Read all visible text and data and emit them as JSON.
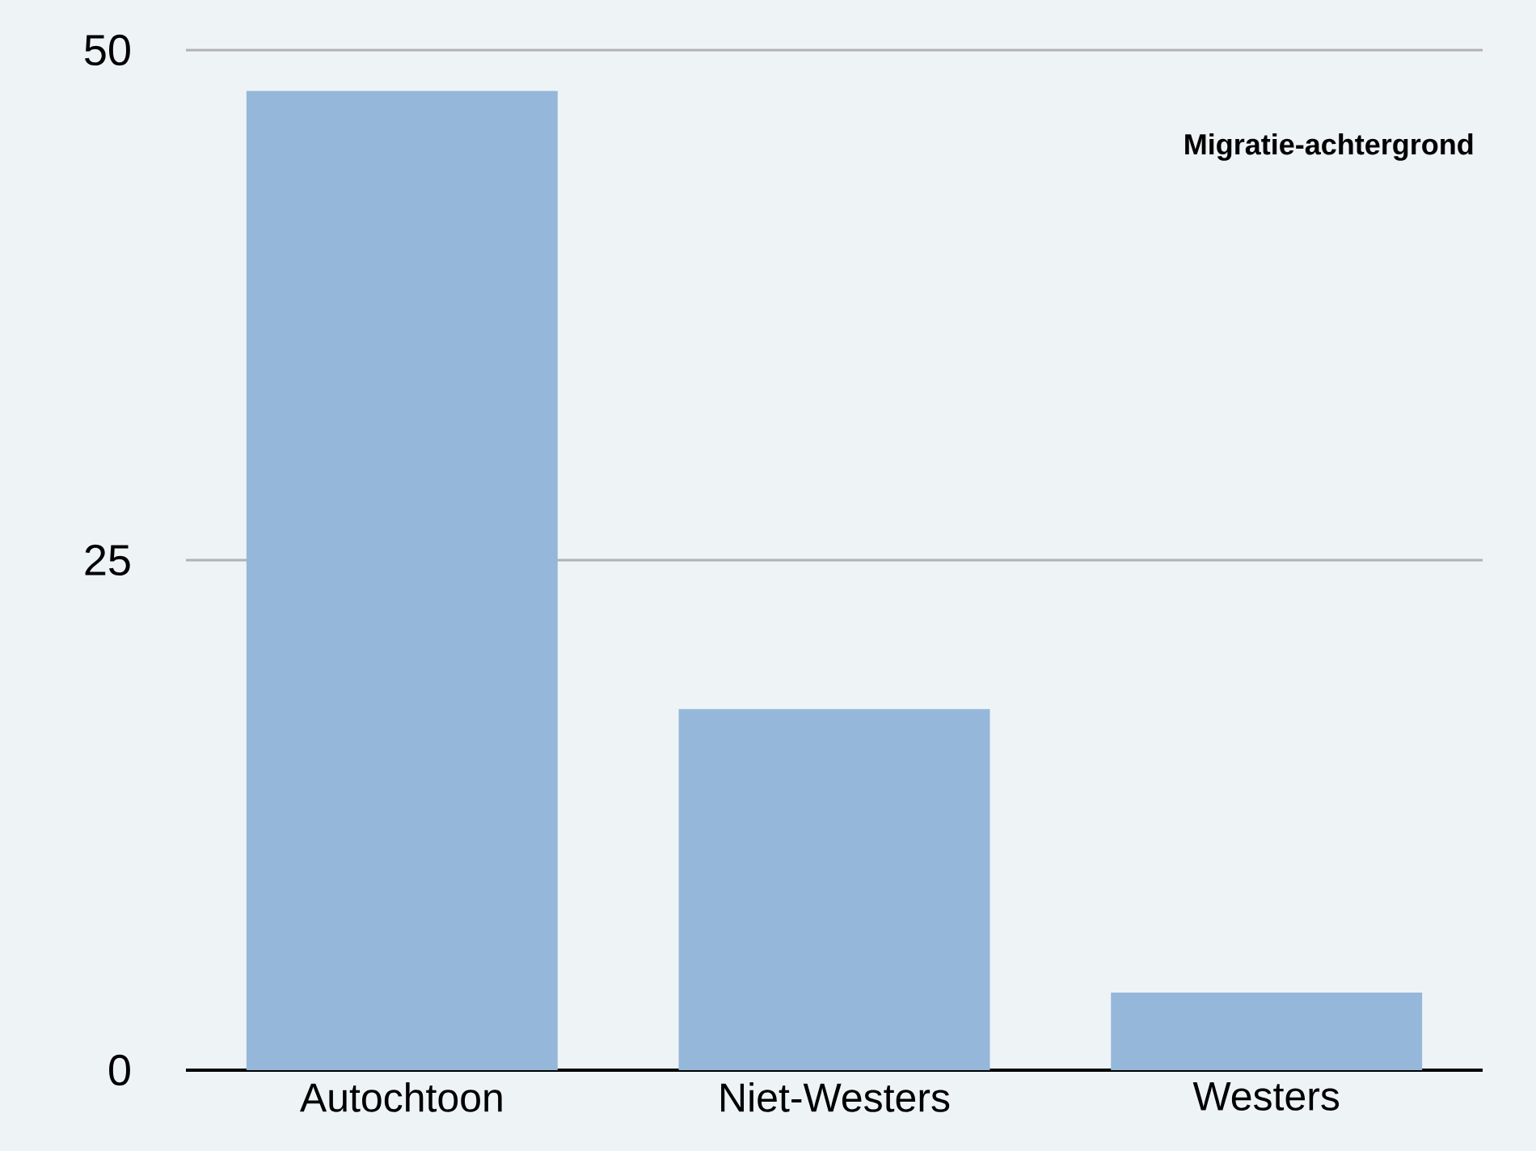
{
  "chart_data": {
    "type": "bar",
    "title": "Migratie-achtergrond",
    "categories": [
      "Autochtoon",
      "Niet-Westers",
      "Westers"
    ],
    "values": [
      48.0,
      17.7,
      3.8
    ],
    "color": "#95b8da",
    "ylim": [
      0,
      50
    ],
    "yticks": [
      0,
      25,
      50
    ],
    "grid": "y"
  }
}
